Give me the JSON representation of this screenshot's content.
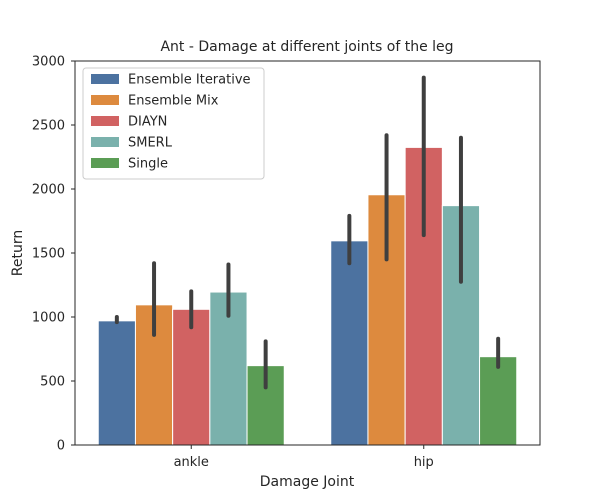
{
  "chart_data": {
    "type": "bar",
    "title": "Ant - Damage at different joints of the leg",
    "xlabel": "Damage Joint",
    "ylabel": "Return",
    "categories": [
      "ankle",
      "hip"
    ],
    "ylim": [
      0,
      3000
    ],
    "yticks": [
      0,
      500,
      1000,
      1500,
      2000,
      2500,
      3000
    ],
    "grid": false,
    "legend_position": "top-left",
    "series": [
      {
        "name": "Ensemble Iterative",
        "color": "#4c72a0",
        "values": [
          970,
          1595
        ],
        "err_low": [
          960,
          1420
        ],
        "err_high": [
          1000,
          1790
        ]
      },
      {
        "name": "Ensemble Mix",
        "color": "#dd8a3e",
        "values": [
          1095,
          1955
        ],
        "err_low": [
          860,
          1450
        ],
        "err_high": [
          1420,
          2420
        ]
      },
      {
        "name": "DIAYN",
        "color": "#d16262",
        "values": [
          1060,
          2325
        ],
        "err_low": [
          920,
          1640
        ],
        "err_high": [
          1200,
          2870
        ]
      },
      {
        "name": "SMERL",
        "color": "#7ab1ac",
        "values": [
          1195,
          1870
        ],
        "err_low": [
          1010,
          1275
        ],
        "err_high": [
          1410,
          2400
        ]
      },
      {
        "name": "Single",
        "color": "#5b9d55",
        "values": [
          620,
          690
        ],
        "err_low": [
          450,
          610
        ],
        "err_high": [
          810,
          830
        ]
      }
    ]
  }
}
